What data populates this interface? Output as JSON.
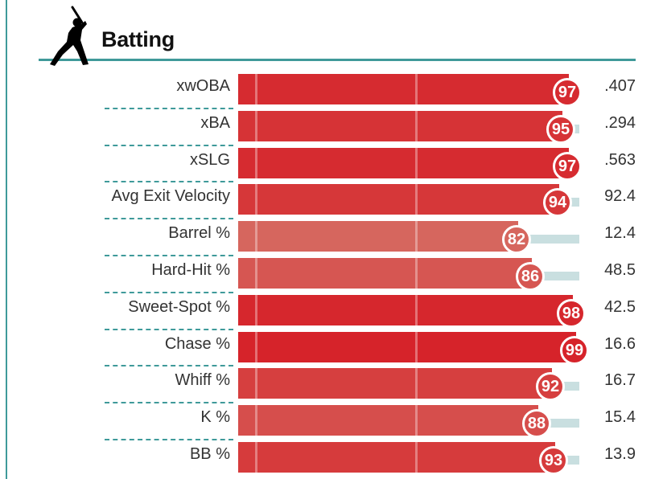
{
  "section": {
    "title": "Batting",
    "icon": "batter-silhouette-icon"
  },
  "colors": {
    "accent": "#3f9a9a",
    "bar_high": "#d6232a",
    "track": "#c9dfe0"
  },
  "metrics": [
    {
      "label": "xwOBA",
      "percentile": 97,
      "value": ".407"
    },
    {
      "label": "xBA",
      "percentile": 95,
      "value": ".294"
    },
    {
      "label": "xSLG",
      "percentile": 97,
      "value": ".563"
    },
    {
      "label": "Avg Exit Velocity",
      "percentile": 94,
      "value": "92.4"
    },
    {
      "label": "Barrel %",
      "percentile": 82,
      "value": "12.4"
    },
    {
      "label": "Hard-Hit %",
      "percentile": 86,
      "value": "48.5"
    },
    {
      "label": "Sweet-Spot %",
      "percentile": 98,
      "value": "42.5"
    },
    {
      "label": "Chase %",
      "percentile": 99,
      "value": "16.6"
    },
    {
      "label": "Whiff %",
      "percentile": 92,
      "value": "16.7"
    },
    {
      "label": "K %",
      "percentile": 88,
      "value": "15.4"
    },
    {
      "label": "BB %",
      "percentile": 93,
      "value": "13.9"
    }
  ]
}
